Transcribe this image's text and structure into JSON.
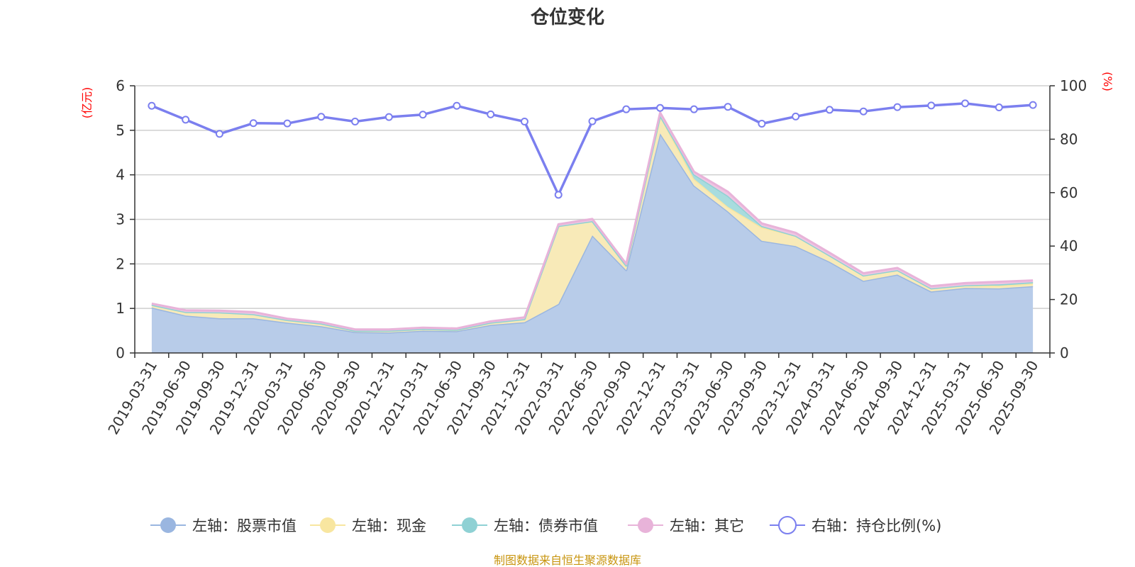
{
  "chart_data": {
    "type": "area",
    "title": "仓位变化",
    "source_note": "制图数据来自恒生聚源数据库",
    "left_axis": {
      "unit_label": "(亿元)",
      "ylim": [
        0,
        6
      ],
      "ticks": [
        0,
        1,
        2,
        3,
        4,
        5,
        6
      ]
    },
    "right_axis": {
      "unit_label": "(%)",
      "ylim": [
        0,
        100
      ],
      "ticks": [
        0,
        20,
        40,
        60,
        80,
        100
      ]
    },
    "categories": [
      "2019-03-31",
      "2019-06-30",
      "2019-09-30",
      "2019-12-31",
      "2020-03-31",
      "2020-06-30",
      "2020-09-30",
      "2020-12-31",
      "2021-03-31",
      "2021-06-30",
      "2021-09-30",
      "2021-12-31",
      "2022-03-31",
      "2022-06-30",
      "2022-09-30",
      "2022-12-31",
      "2023-03-31",
      "2023-06-30",
      "2023-09-30",
      "2023-12-31",
      "2024-03-31",
      "2024-06-30",
      "2024-09-30",
      "2024-12-31",
      "2025-03-31",
      "2025-06-30",
      "2025-09-30"
    ],
    "series": [
      {
        "name": "左轴：股票市值",
        "axis": "left",
        "kind": "stacked-area",
        "color": "#9ab6e0",
        "fill": "#b8cce9",
        "values": [
          1.02,
          0.84,
          0.78,
          0.78,
          0.68,
          0.6,
          0.47,
          0.46,
          0.5,
          0.49,
          0.63,
          0.69,
          1.1,
          2.64,
          1.86,
          4.93,
          3.76,
          3.18,
          2.52,
          2.4,
          2.05,
          1.62,
          1.76,
          1.38,
          1.46,
          1.45,
          1.5
        ]
      },
      {
        "name": "左轴：现金",
        "axis": "left",
        "kind": "stacked-area",
        "color": "#f8e6a0",
        "fill": "#f8eab8",
        "values": [
          0.06,
          0.08,
          0.13,
          0.09,
          0.06,
          0.06,
          0.03,
          0.04,
          0.04,
          0.03,
          0.05,
          0.07,
          1.75,
          0.32,
          0.1,
          0.4,
          0.15,
          0.1,
          0.3,
          0.23,
          0.14,
          0.12,
          0.1,
          0.07,
          0.06,
          0.06,
          0.06
        ]
      },
      {
        "name": "左轴：债券市值",
        "axis": "left",
        "kind": "stacked-area",
        "color": "#8fd1d4",
        "fill": "#a8dcde",
        "values": [
          0,
          0,
          0,
          0,
          0,
          0,
          0,
          0,
          0,
          0,
          0,
          0,
          0,
          0,
          0,
          0,
          0.1,
          0.25,
          0.03,
          0,
          0,
          0,
          0,
          0,
          0,
          0.03,
          0.03
        ]
      },
      {
        "name": "左轴：其它",
        "axis": "left",
        "kind": "stacked-area",
        "color": "#e8b3d9",
        "fill": "#eec6e2",
        "values": [
          0.03,
          0.04,
          0.04,
          0.05,
          0.03,
          0.03,
          0.03,
          0.03,
          0.03,
          0.03,
          0.03,
          0.04,
          0.04,
          0.05,
          0.04,
          0.07,
          0.06,
          0.09,
          0.06,
          0.07,
          0.06,
          0.05,
          0.05,
          0.05,
          0.05,
          0.06,
          0.04
        ]
      },
      {
        "name": "右轴：持仓比例(%)",
        "axis": "right",
        "kind": "line",
        "color": "#7b7fef",
        "values": [
          92.5,
          87.3,
          82.0,
          86.0,
          85.9,
          88.4,
          86.6,
          88.3,
          89.2,
          92.5,
          89.3,
          86.6,
          59.2,
          86.7,
          91.2,
          91.7,
          91.2,
          92.1,
          85.8,
          88.5,
          91.0,
          90.4,
          92.0,
          92.6,
          93.4,
          91.9,
          92.8
        ]
      }
    ]
  }
}
